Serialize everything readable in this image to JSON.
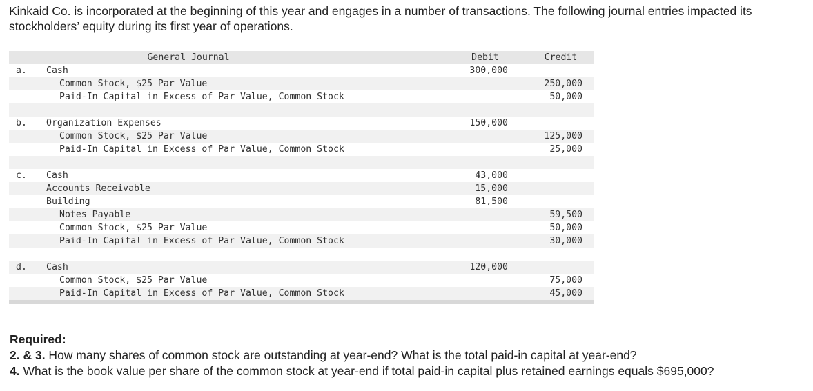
{
  "intro": "Kinkaid Co. is incorporated at the beginning of this year and engages in a number of transactions. The following journal entries impacted its stockholders’ equity during its first year of operations.",
  "journal": {
    "headers": {
      "general_journal": "General Journal",
      "debit": "Debit",
      "credit": "Credit"
    },
    "rows": [
      {
        "letter": "a.",
        "account": "Cash",
        "indent": false,
        "debit": "300,000",
        "credit": "",
        "striped": false
      },
      {
        "letter": "",
        "account": "Common Stock, $25 Par Value",
        "indent": true,
        "debit": "",
        "credit": "250,000",
        "striped": true
      },
      {
        "letter": "",
        "account": "Paid-In Capital in Excess of Par Value, Common Stock",
        "indent": true,
        "debit": "",
        "credit": "50,000",
        "striped": false
      },
      {
        "letter": "",
        "account": "",
        "indent": false,
        "debit": "",
        "credit": "",
        "striped": true
      },
      {
        "letter": "b.",
        "account": "Organization Expenses",
        "indent": false,
        "debit": "150,000",
        "credit": "",
        "striped": false
      },
      {
        "letter": "",
        "account": "Common Stock, $25 Par Value",
        "indent": true,
        "debit": "",
        "credit": "125,000",
        "striped": true
      },
      {
        "letter": "",
        "account": "Paid-In Capital in Excess of Par Value, Common Stock",
        "indent": true,
        "debit": "",
        "credit": "25,000",
        "striped": false
      },
      {
        "letter": "",
        "account": "",
        "indent": false,
        "debit": "",
        "credit": "",
        "striped": true
      },
      {
        "letter": "c.",
        "account": "Cash",
        "indent": false,
        "debit": "43,000",
        "credit": "",
        "striped": false
      },
      {
        "letter": "",
        "account": "Accounts Receivable",
        "indent": false,
        "debit": "15,000",
        "credit": "",
        "striped": true
      },
      {
        "letter": "",
        "account": "Building",
        "indent": false,
        "debit": "81,500",
        "credit": "",
        "striped": false
      },
      {
        "letter": "",
        "account": "Notes Payable",
        "indent": true,
        "debit": "",
        "credit": "59,500",
        "striped": true
      },
      {
        "letter": "",
        "account": "Common Stock, $25 Par Value",
        "indent": true,
        "debit": "",
        "credit": "50,000",
        "striped": false
      },
      {
        "letter": "",
        "account": "Paid-In Capital in Excess of Par Value, Common Stock",
        "indent": true,
        "debit": "",
        "credit": "30,000",
        "striped": true
      },
      {
        "letter": "",
        "account": "",
        "indent": false,
        "debit": "",
        "credit": "",
        "striped": false
      },
      {
        "letter": "d.",
        "account": "Cash",
        "indent": false,
        "debit": "120,000",
        "credit": "",
        "striped": true
      },
      {
        "letter": "",
        "account": "Common Stock, $25 Par Value",
        "indent": true,
        "debit": "",
        "credit": "75,000",
        "striped": false
      },
      {
        "letter": "",
        "account": "Paid-In Capital in Excess of Par Value, Common Stock",
        "indent": true,
        "debit": "",
        "credit": "45,000",
        "striped": true
      }
    ]
  },
  "required": {
    "heading": "Required:",
    "q23_label": "2. & 3.",
    "q23_text": " How many shares of common stock are outstanding at year-end? What is the total paid-in capital at year-end?",
    "q4_label": "4.",
    "q4_text": " What is the book value per share of the common stock at year-end if total paid-in capital plus retained earnings equals $695,000?"
  }
}
